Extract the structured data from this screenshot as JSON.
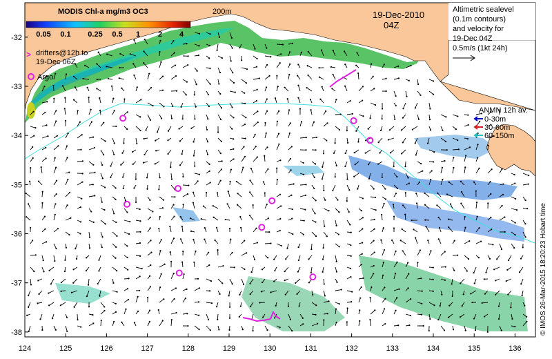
{
  "legend": {
    "title": "MODIS Chl-a mg/m3 OC3",
    "ticks": [
      "0.05",
      "0.1",
      "0.25",
      "0.5",
      "1",
      "2",
      "4"
    ]
  },
  "labels": {
    "isobath": "200m",
    "date": "19-Dec-2010",
    "time": "04Z",
    "drifters_line1": "drifters@12h to",
    "drifters_line2": "19-Dec 06Z",
    "drifter_marker": ">",
    "argo": "Argo",
    "altimetry_lines": [
      "Altimetric sealevel",
      "(0.1m contours)",
      "and velocity for",
      "19-Dec 04Z",
      "0.5m/s (1kt 24h)"
    ],
    "anmn_title": "ANMN 12h av.",
    "anmn_items": [
      "0-30m",
      "30-60m",
      "60-150m"
    ],
    "credit": "© IMOS 26-Mar-2015 18:20:23 Hobart time"
  },
  "axes": {
    "lon_ticks": [
      "124",
      "125",
      "126",
      "127",
      "128",
      "129",
      "130",
      "131",
      "132",
      "133",
      "134",
      "135",
      "136"
    ],
    "lat_ticks": [
      "-32",
      "-33",
      "-34",
      "-35",
      "-36",
      "-37",
      "-38"
    ],
    "lon_range": [
      124,
      136.5
    ],
    "lat_range": [
      -31.3,
      -38.1
    ]
  },
  "colors": {
    "land": "#f9c79a",
    "magenta": "#e020e0",
    "shelf_line": "#40e0e0",
    "anmn": [
      "#0000cc",
      "#d02020",
      "#20c0c0"
    ]
  },
  "argo_floats": [
    {
      "lon": 126.4,
      "lat": -33.65
    },
    {
      "lon": 132.05,
      "lat": -33.7
    },
    {
      "lon": 132.45,
      "lat": -34.1
    },
    {
      "lon": 127.75,
      "lat": -35.08
    },
    {
      "lon": 126.5,
      "lat": -35.4
    },
    {
      "lon": 130.05,
      "lat": -35.33
    },
    {
      "lon": 129.8,
      "lat": -35.87
    },
    {
      "lon": 127.78,
      "lat": -36.8
    },
    {
      "lon": 131.05,
      "lat": -36.88
    }
  ]
}
